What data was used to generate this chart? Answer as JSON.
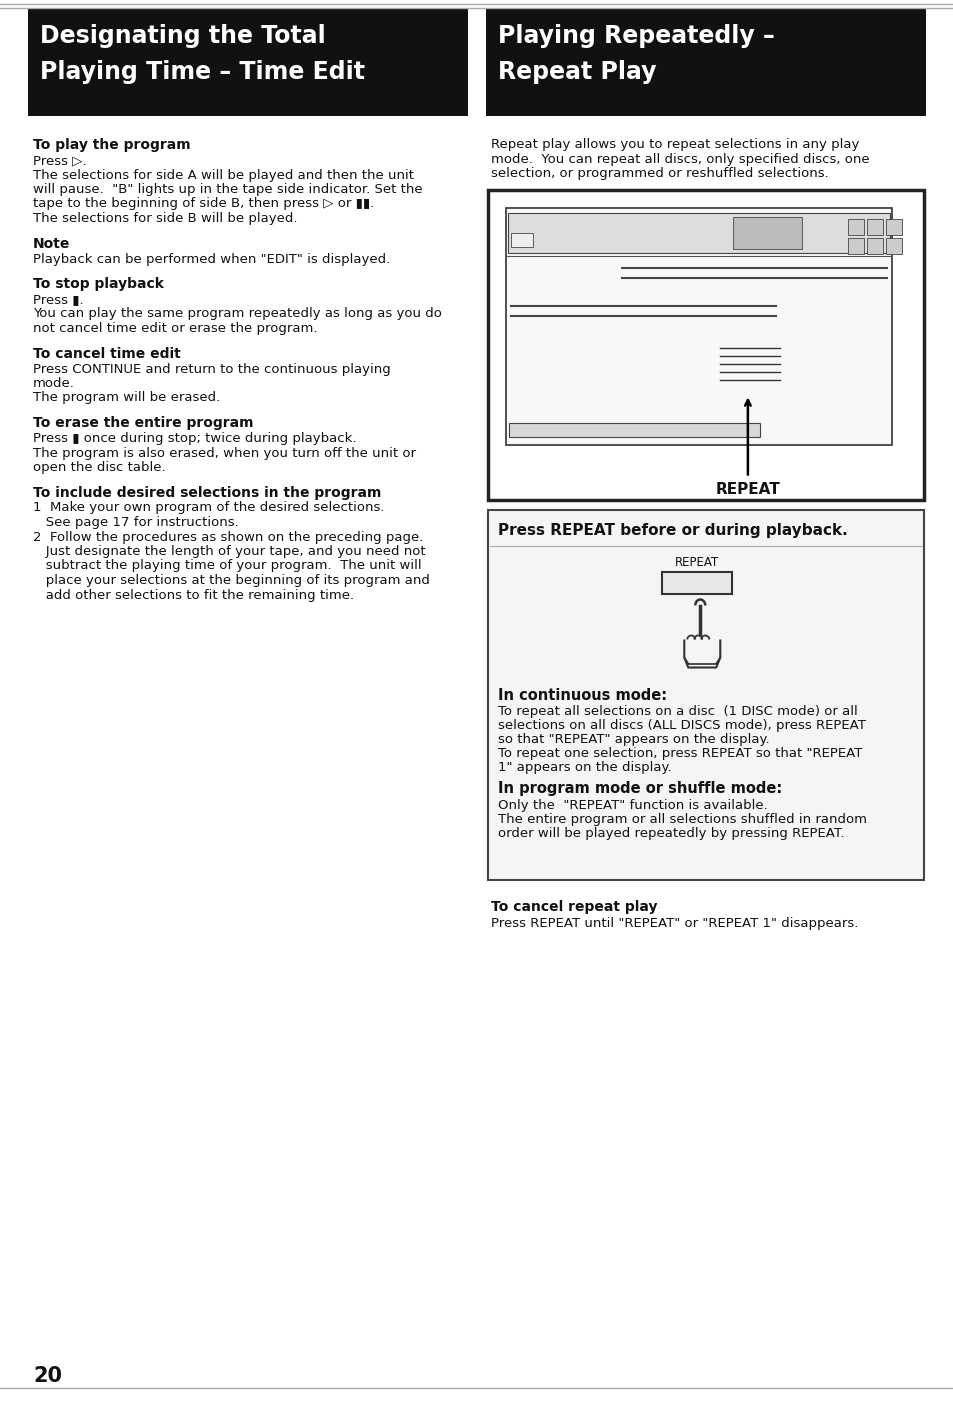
{
  "page_bg": "#ffffff",
  "header_bg": "#111111",
  "header_text_color": "#ffffff",
  "body_text_color": "#111111",
  "left_header_line1": "Designating the Total",
  "left_header_line2": "Playing Time – Time Edit",
  "right_header_line1": "Playing Repeatedly –",
  "right_header_line2": "Repeat Play",
  "page_number": "20",
  "sections_left": [
    {
      "heading": "To play the program",
      "body": "Press ▷.\nThe selections for side A will be played and then the unit\nwill pause.  \"B\" lights up in the tape side indicator. Set the\ntape to the beginning of side B, then press ▷ or ▮▮.\nThe selections for side B will be played."
    },
    {
      "heading": "Note",
      "body": "Playback can be performed when \"EDIT\" is displayed."
    },
    {
      "heading": "To stop playback",
      "body": "Press ▮.\nYou can play the same program repeatedly as long as you do\nnot cancel time edit or erase the program."
    },
    {
      "heading": "To cancel time edit",
      "body": "Press CONTINUE and return to the continuous playing\nmode.\nThe program will be erased."
    },
    {
      "heading": "To erase the entire program",
      "body": "Press ▮ once during stop; twice during playback.\nThe program is also erased, when you turn off the unit or\nopen the disc table."
    },
    {
      "heading": "To include desired selections in the program",
      "body": "1  Make your own program of the desired selections.\n   See page 17 for instructions.\n2  Follow the procedures as shown on the preceding page.\n   Just designate the length of your tape, and you need not\n   subtract the playing time of your program.  The unit will\n   place your selections at the beginning of its program and\n   add other selections to fit the remaining time."
    }
  ],
  "right_intro": "Repeat play allows you to repeat selections in any play\nmode.  You can repeat all discs, only specified discs, one\nselection, or programmed or reshuffled selections.",
  "press_repeat_label": "Press REPEAT before or during playback.",
  "continuous_mode_heading": "In continuous mode:",
  "continuous_mode_body": "To repeat all selections on a disc  (1 DISC mode) or all\nselections on all discs (ALL DISCS mode), press REPEAT\nso that \"REPEAT\" appears on the display.\nTo repeat one selection, press REPEAT so that \"REPEAT\n1\" appears on the display.",
  "program_mode_heading": "In program mode or shuffle mode:",
  "program_mode_body": "Only the  \"REPEAT\" function is available.\nThe entire program or all selections shuffled in random\norder will be played repeatedly by pressing REPEAT.",
  "cancel_repeat_heading": "To cancel repeat play",
  "cancel_repeat_body": "Press REPEAT until \"REPEAT\" or \"REPEAT 1\" disappears."
}
